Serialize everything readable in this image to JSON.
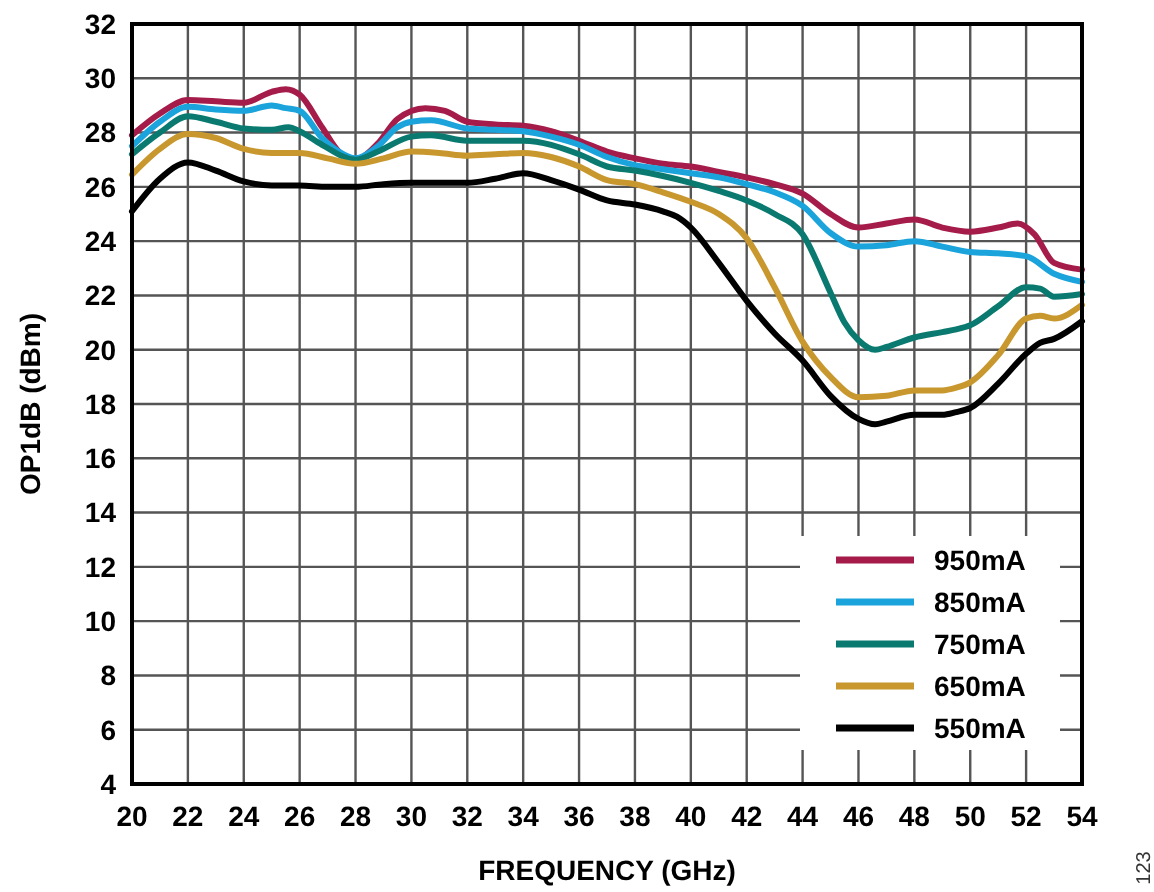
{
  "chart_data": {
    "type": "line",
    "xlabel": "FREQUENCY (GHz)",
    "ylabel": "OP1dB (dBm)",
    "annotations": [
      "123"
    ],
    "xlim": [
      20,
      54
    ],
    "xticks": [
      20,
      22,
      24,
      26,
      28,
      30,
      32,
      34,
      36,
      38,
      40,
      42,
      44,
      46,
      48,
      50,
      52,
      54
    ],
    "ylim": [
      4,
      32
    ],
    "yticks": [
      4,
      6,
      8,
      10,
      12,
      14,
      16,
      18,
      20,
      22,
      24,
      26,
      28,
      30,
      32
    ],
    "grid": true,
    "legend": "bottom right",
    "line_style": "solid",
    "series": [
      {
        "name": "950mA",
        "color": "#a51c4a",
        "x": [
          20,
          21,
          22,
          23,
          24,
          25,
          25.5,
          26,
          26.8,
          27.4,
          28,
          28.8,
          29.5,
          30.5,
          31.2,
          32,
          33,
          34,
          35,
          36,
          37,
          38,
          39,
          40,
          41,
          42,
          43,
          44,
          45,
          46,
          47,
          48,
          49,
          50,
          51,
          51.7,
          52.3,
          53,
          54
        ],
        "values": [
          27.9,
          28.7,
          29.2,
          29.15,
          29.1,
          29.5,
          29.6,
          29.4,
          28.2,
          27.3,
          27.0,
          27.6,
          28.5,
          28.9,
          28.8,
          28.4,
          28.3,
          28.25,
          28.05,
          27.7,
          27.3,
          27.05,
          26.85,
          26.75,
          26.55,
          26.35,
          26.1,
          25.75,
          25.0,
          24.5,
          24.65,
          24.8,
          24.5,
          24.35,
          24.5,
          24.65,
          24.25,
          23.2,
          22.95
        ]
      },
      {
        "name": "850mA",
        "color": "#1ba3dc",
        "x": [
          20,
          21,
          22,
          23,
          24,
          25,
          25.5,
          26,
          26.8,
          27.4,
          28,
          28.8,
          29.5,
          30,
          30.7,
          32,
          33,
          34,
          35,
          36,
          37,
          38,
          39,
          40,
          41,
          42,
          43,
          44,
          45,
          46,
          47,
          48,
          49,
          50,
          51,
          52,
          53,
          54
        ],
        "values": [
          27.5,
          28.4,
          28.95,
          28.85,
          28.8,
          29.0,
          28.9,
          28.8,
          27.8,
          27.3,
          27.05,
          27.5,
          28.2,
          28.4,
          28.45,
          28.15,
          28.1,
          28.05,
          27.85,
          27.55,
          27.1,
          26.8,
          26.65,
          26.5,
          26.35,
          26.1,
          25.8,
          25.3,
          24.3,
          23.8,
          23.85,
          24.0,
          23.8,
          23.6,
          23.55,
          23.45,
          22.8,
          22.5
        ]
      },
      {
        "name": "750mA",
        "color": "#0a7a70",
        "x": [
          20,
          21,
          22,
          23,
          24,
          25,
          25.6,
          26,
          26.8,
          28,
          28.8,
          30,
          30.7,
          32,
          34,
          36,
          37,
          38,
          39,
          40,
          41,
          42,
          43,
          44,
          45,
          45.5,
          46,
          46.6,
          47,
          48,
          49,
          49.5,
          50,
          51,
          52,
          52.5,
          53,
          54
        ],
        "values": [
          27.2,
          28.0,
          28.6,
          28.4,
          28.15,
          28.1,
          28.2,
          28.05,
          27.55,
          27.0,
          27.3,
          27.85,
          27.9,
          27.7,
          27.7,
          27.2,
          26.75,
          26.6,
          26.4,
          26.15,
          25.85,
          25.5,
          25.0,
          24.25,
          22.1,
          21.0,
          20.35,
          20.0,
          20.1,
          20.45,
          20.65,
          20.75,
          20.9,
          21.6,
          22.3,
          22.25,
          21.95,
          22.05
        ]
      },
      {
        "name": "650mA",
        "color": "#c8982f",
        "x": [
          20,
          21,
          22,
          23,
          24,
          25,
          26,
          27,
          28,
          29,
          30,
          31,
          32,
          33,
          34,
          35,
          36,
          37,
          38,
          39,
          40,
          41,
          42,
          43,
          44,
          45,
          46,
          47,
          48,
          49,
          49.5,
          50,
          51,
          52,
          52.5,
          53,
          54
        ],
        "values": [
          26.45,
          27.4,
          27.95,
          27.8,
          27.4,
          27.25,
          27.25,
          27.05,
          26.85,
          27.05,
          27.3,
          27.25,
          27.15,
          27.2,
          27.25,
          27.1,
          26.75,
          26.25,
          26.1,
          25.8,
          25.45,
          25.0,
          24.1,
          22.3,
          20.3,
          19.0,
          18.25,
          18.3,
          18.5,
          18.5,
          18.6,
          18.8,
          19.8,
          21.15,
          21.25,
          21.15,
          21.65
        ]
      },
      {
        "name": "550mA",
        "color": "#000000",
        "x": [
          20,
          21,
          22,
          23,
          24,
          25,
          26,
          27,
          28,
          29,
          30,
          31,
          32,
          33,
          34,
          35,
          36,
          37,
          38,
          39,
          39.5,
          40,
          41,
          42,
          43,
          44,
          45,
          46,
          46.6,
          47,
          48,
          49,
          49.5,
          50,
          51,
          52,
          52.5,
          53,
          54
        ],
        "values": [
          25.1,
          26.3,
          26.9,
          26.6,
          26.2,
          26.05,
          26.05,
          26.0,
          26.0,
          26.1,
          26.15,
          26.15,
          26.15,
          26.3,
          26.5,
          26.25,
          25.9,
          25.5,
          25.35,
          25.1,
          24.9,
          24.5,
          23.2,
          21.8,
          20.6,
          19.6,
          18.3,
          17.45,
          17.25,
          17.35,
          17.6,
          17.6,
          17.7,
          17.85,
          18.75,
          19.85,
          20.25,
          20.4,
          21.05
        ]
      }
    ]
  }
}
